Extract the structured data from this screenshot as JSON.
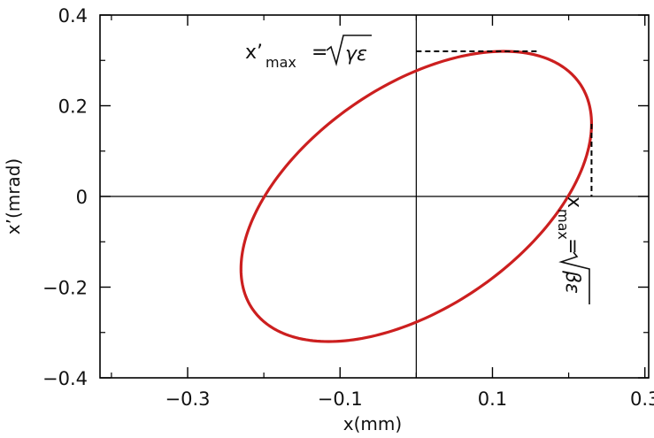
{
  "chart_data": {
    "type": "line",
    "title": "",
    "xlabel": "x(mm)",
    "ylabel": "x’(mrad)",
    "xlim": [
      -0.415,
      0.305
    ],
    "ylim": [
      -0.4,
      0.4
    ],
    "x_ticks": [
      -0.3,
      -0.1,
      0.1,
      0.3
    ],
    "x_tick_labels": [
      "−0.3",
      "−0.1",
      "0.1",
      "0.3"
    ],
    "y_ticks": [
      -0.4,
      -0.2,
      0,
      0.2,
      0.4
    ],
    "y_tick_labels": [
      "−0.4",
      "−0.2",
      "0",
      "0.2",
      "0.4"
    ],
    "grid": false,
    "zero_lines": true,
    "series": [
      {
        "color": "#cc1f1f",
        "shape": "ellipse",
        "x_max": 0.23,
        "xp_max": 0.32,
        "x_at_xp_max": 0.16,
        "xp_at_x_max": 0.16,
        "xp_intercept": 0.27,
        "x_intercept": 0.2
      }
    ],
    "annotations": {
      "xp_max": {
        "main": "x’",
        "sub": "max",
        "eq": "=",
        "radicand": "γε"
      },
      "x_max": {
        "main": "x",
        "sub": "max",
        "eq": "=",
        "radicand": "βε"
      }
    }
  }
}
